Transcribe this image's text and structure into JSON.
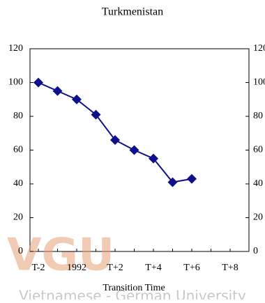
{
  "chart_data": {
    "type": "line",
    "title": "Turkmenistan",
    "x_label": "Transition Time",
    "categories": [
      "T-2",
      null,
      "1992",
      null,
      "T+2",
      null,
      "T+4",
      null,
      "T+6",
      null,
      "T+8"
    ],
    "series": [
      {
        "color": "#10108a",
        "values": [
          100,
          95,
          90,
          81,
          66,
          60,
          55,
          41,
          43,
          null,
          null
        ]
      }
    ],
    "ylim": [
      0,
      120
    ],
    "yticks": [
      0,
      20,
      40,
      60,
      80,
      100,
      120
    ],
    "watermark": {
      "logo": "VGU",
      "text": "Vietnamese - German University"
    }
  }
}
